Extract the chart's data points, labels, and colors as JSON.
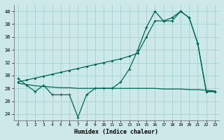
{
  "xlabel": "Humidex (Indice chaleur)",
  "bg_color": "#cce8e8",
  "grid_color": "#aad4d4",
  "line_color": "#006655",
  "ylim": [
    23.0,
    41.0
  ],
  "xlim": [
    -0.5,
    23.5
  ],
  "yticks": [
    24,
    26,
    28,
    30,
    32,
    34,
    36,
    38,
    40
  ],
  "xticks": [
    0,
    1,
    2,
    3,
    4,
    5,
    6,
    7,
    8,
    9,
    10,
    11,
    12,
    13,
    14,
    15,
    16,
    17,
    18,
    19,
    20,
    21,
    22,
    23
  ],
  "line_actual": [
    29.5,
    28.5,
    27.5,
    28.5,
    27.0,
    27.0,
    27.0,
    23.5,
    27.0,
    28.0,
    28.0,
    28.0,
    29.0,
    31.0,
    34.0,
    37.5,
    40.0,
    38.5,
    38.5,
    40.0,
    39.0,
    35.0,
    27.5,
    27.5
  ],
  "line_diagonal": [
    29.0,
    29.3,
    29.6,
    29.9,
    30.2,
    30.5,
    30.8,
    31.1,
    31.4,
    31.7,
    32.0,
    32.3,
    32.6,
    33.0,
    33.5,
    36.0,
    38.5,
    38.5,
    39.0,
    40.0,
    39.0,
    35.0,
    27.5,
    27.5
  ],
  "line_flat": [
    28.8,
    28.6,
    28.4,
    28.3,
    28.2,
    28.1,
    28.1,
    28.0,
    28.0,
    28.0,
    28.0,
    28.0,
    28.0,
    28.0,
    28.0,
    28.0,
    28.0,
    27.9,
    27.9,
    27.9,
    27.8,
    27.8,
    27.7,
    27.6
  ]
}
